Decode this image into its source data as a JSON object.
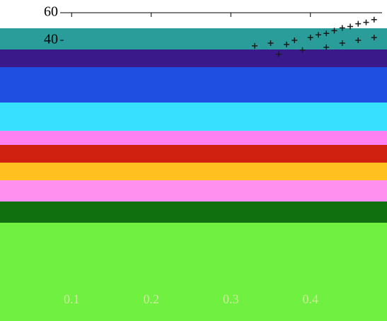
{
  "chart_data": {
    "type": "scatter",
    "xlim": [
      0.09,
      0.49
    ],
    "xticks": [
      0.1,
      0.2,
      0.3,
      0.4
    ],
    "ylim": [
      -151,
      60
    ],
    "yticks": [
      40,
      60
    ],
    "series": [
      {
        "color": "#1a1a1a",
        "x": [
          0.33,
          0.35,
          0.37,
          0.38,
          0.4,
          0.41,
          0.42,
          0.43,
          0.44,
          0.45,
          0.46,
          0.47,
          0.48,
          0.36,
          0.39,
          0.42,
          0.44,
          0.46,
          0.48
        ],
        "values": [
          36,
          38,
          37,
          40,
          42,
          44,
          45,
          47,
          49,
          50,
          52,
          53,
          55,
          30,
          33,
          35,
          38,
          40,
          42
        ]
      }
    ]
  }
}
